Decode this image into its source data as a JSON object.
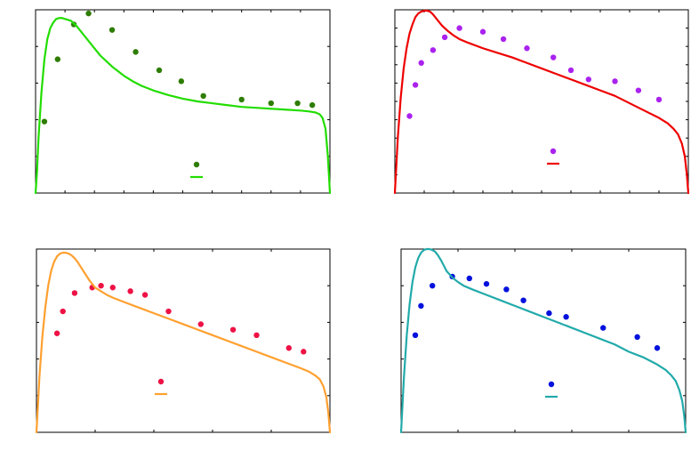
{
  "figure": {
    "background": "#ffffff",
    "frame_color": "#000000"
  },
  "chart_data": [
    {
      "type": "scatter",
      "panel": "top-left",
      "xlim": [
        0,
        1.0
      ],
      "ylim": [
        0,
        1.0
      ],
      "grid": false,
      "legend": "lower-center",
      "xticks": 11,
      "yticks": 6,
      "series": [
        {
          "kind": "markers",
          "color": "#2e7d00",
          "x": [
            0.03,
            0.075,
            0.13,
            0.18,
            0.26,
            0.34,
            0.42,
            0.495,
            0.57,
            0.7,
            0.8,
            0.89,
            0.94
          ],
          "y": [
            0.39,
            0.73,
            0.92,
            0.98,
            0.89,
            0.77,
            0.67,
            0.61,
            0.53,
            0.51,
            0.49,
            0.49,
            0.48
          ]
        },
        {
          "kind": "line",
          "color": "#22dd00",
          "x": [
            0,
            0.005,
            0.01,
            0.02,
            0.03,
            0.04,
            0.05,
            0.06,
            0.07,
            0.08,
            0.09,
            0.1,
            0.12,
            0.14,
            0.16,
            0.18,
            0.2,
            0.22,
            0.24,
            0.26,
            0.28,
            0.3,
            0.33,
            0.36,
            0.4,
            0.45,
            0.5,
            0.55,
            0.6,
            0.65,
            0.7,
            0.75,
            0.8,
            0.85,
            0.9,
            0.93,
            0.95,
            0.965,
            0.975,
            0.985,
            0.993,
            1.0
          ],
          "y": [
            0,
            0.12,
            0.3,
            0.55,
            0.73,
            0.84,
            0.9,
            0.93,
            0.95,
            0.955,
            0.955,
            0.95,
            0.94,
            0.91,
            0.87,
            0.83,
            0.79,
            0.75,
            0.72,
            0.69,
            0.665,
            0.64,
            0.61,
            0.585,
            0.56,
            0.535,
            0.515,
            0.5,
            0.49,
            0.48,
            0.47,
            0.465,
            0.46,
            0.455,
            0.45,
            0.445,
            0.44,
            0.43,
            0.41,
            0.35,
            0.2,
            0.0
          ]
        }
      ]
    },
    {
      "type": "scatter",
      "panel": "top-right",
      "xlim": [
        0,
        1.0
      ],
      "ylim": [
        0,
        1.0
      ],
      "grid": false,
      "legend": "lower-center",
      "xticks": 11,
      "yticks": 11,
      "series": [
        {
          "kind": "markers",
          "color": "#aa22ee",
          "x": [
            0.05,
            0.07,
            0.09,
            0.13,
            0.17,
            0.22,
            0.3,
            0.37,
            0.45,
            0.54,
            0.6,
            0.66,
            0.75,
            0.83,
            0.9
          ],
          "y": [
            0.42,
            0.59,
            0.71,
            0.78,
            0.85,
            0.9,
            0.88,
            0.84,
            0.79,
            0.74,
            0.67,
            0.62,
            0.61,
            0.56,
            0.51
          ]
        },
        {
          "kind": "line",
          "color": "#ee0000",
          "x": [
            0,
            0.005,
            0.01,
            0.02,
            0.03,
            0.04,
            0.05,
            0.06,
            0.07,
            0.08,
            0.09,
            0.1,
            0.11,
            0.12,
            0.13,
            0.14,
            0.15,
            0.16,
            0.18,
            0.2,
            0.22,
            0.25,
            0.3,
            0.35,
            0.4,
            0.45,
            0.5,
            0.55,
            0.6,
            0.65,
            0.7,
            0.75,
            0.8,
            0.85,
            0.9,
            0.93,
            0.95,
            0.965,
            0.978,
            0.988,
            0.995,
            1.0
          ],
          "y": [
            0,
            0.15,
            0.3,
            0.52,
            0.68,
            0.79,
            0.87,
            0.92,
            0.96,
            0.98,
            0.99,
            0.995,
            0.995,
            0.99,
            0.975,
            0.955,
            0.935,
            0.915,
            0.885,
            0.86,
            0.84,
            0.82,
            0.79,
            0.765,
            0.74,
            0.71,
            0.68,
            0.65,
            0.62,
            0.59,
            0.56,
            0.53,
            0.49,
            0.45,
            0.41,
            0.38,
            0.35,
            0.32,
            0.27,
            0.2,
            0.1,
            0.0
          ]
        }
      ]
    },
    {
      "type": "scatter",
      "panel": "bottom-left",
      "xlim": [
        0,
        1.0
      ],
      "ylim": [
        0,
        1.0
      ],
      "grid": false,
      "legend": "lower-center",
      "xticks": 6,
      "yticks": 6,
      "series": [
        {
          "kind": "markers",
          "color": "#ee1144",
          "x": [
            0.07,
            0.09,
            0.13,
            0.19,
            0.22,
            0.26,
            0.32,
            0.37,
            0.45,
            0.56,
            0.67,
            0.75,
            0.86,
            0.91
          ],
          "y": [
            0.54,
            0.66,
            0.76,
            0.79,
            0.8,
            0.79,
            0.77,
            0.75,
            0.66,
            0.59,
            0.56,
            0.53,
            0.46,
            0.44
          ]
        },
        {
          "kind": "line",
          "color": "#ffa030",
          "x": [
            0,
            0.005,
            0.01,
            0.02,
            0.03,
            0.04,
            0.05,
            0.06,
            0.07,
            0.08,
            0.09,
            0.1,
            0.11,
            0.12,
            0.13,
            0.14,
            0.15,
            0.16,
            0.17,
            0.18,
            0.19,
            0.2,
            0.22,
            0.24,
            0.26,
            0.3,
            0.35,
            0.4,
            0.45,
            0.5,
            0.55,
            0.6,
            0.65,
            0.7,
            0.75,
            0.8,
            0.85,
            0.9,
            0.93,
            0.95,
            0.965,
            0.978,
            0.988,
            0.995,
            1.0
          ],
          "y": [
            0,
            0.15,
            0.3,
            0.52,
            0.68,
            0.8,
            0.88,
            0.93,
            0.96,
            0.975,
            0.98,
            0.98,
            0.975,
            0.965,
            0.95,
            0.93,
            0.905,
            0.88,
            0.855,
            0.83,
            0.81,
            0.79,
            0.77,
            0.75,
            0.735,
            0.71,
            0.68,
            0.65,
            0.62,
            0.59,
            0.56,
            0.53,
            0.5,
            0.47,
            0.44,
            0.41,
            0.38,
            0.35,
            0.33,
            0.31,
            0.29,
            0.25,
            0.19,
            0.1,
            0.0
          ]
        }
      ]
    },
    {
      "type": "scatter",
      "panel": "bottom-right",
      "xlim": [
        0,
        1.0
      ],
      "ylim": [
        0,
        1.0
      ],
      "grid": false,
      "legend": "lower-center",
      "xticks": 6,
      "yticks": 6,
      "series": [
        {
          "kind": "markers",
          "color": "#0011dd",
          "x": [
            0.05,
            0.07,
            0.11,
            0.18,
            0.24,
            0.3,
            0.37,
            0.43,
            0.52,
            0.58,
            0.71,
            0.83,
            0.9
          ],
          "y": [
            0.53,
            0.69,
            0.8,
            0.85,
            0.84,
            0.81,
            0.78,
            0.72,
            0.65,
            0.63,
            0.57,
            0.52,
            0.46
          ]
        },
        {
          "kind": "line",
          "color": "#22aaaa",
          "x": [
            0,
            0.005,
            0.01,
            0.02,
            0.03,
            0.04,
            0.05,
            0.06,
            0.07,
            0.08,
            0.09,
            0.1,
            0.11,
            0.12,
            0.13,
            0.14,
            0.15,
            0.16,
            0.18,
            0.2,
            0.22,
            0.25,
            0.3,
            0.35,
            0.4,
            0.45,
            0.5,
            0.55,
            0.6,
            0.65,
            0.7,
            0.75,
            0.8,
            0.85,
            0.9,
            0.93,
            0.95,
            0.965,
            0.978,
            0.988,
            0.995,
            1.0
          ],
          "y": [
            0,
            0.15,
            0.3,
            0.53,
            0.7,
            0.82,
            0.9,
            0.95,
            0.98,
            0.995,
            1.0,
            1.0,
            0.995,
            0.985,
            0.965,
            0.94,
            0.91,
            0.88,
            0.845,
            0.82,
            0.8,
            0.78,
            0.75,
            0.72,
            0.69,
            0.66,
            0.63,
            0.6,
            0.57,
            0.54,
            0.51,
            0.48,
            0.44,
            0.41,
            0.37,
            0.34,
            0.31,
            0.28,
            0.23,
            0.17,
            0.09,
            0.0
          ]
        }
      ]
    }
  ]
}
